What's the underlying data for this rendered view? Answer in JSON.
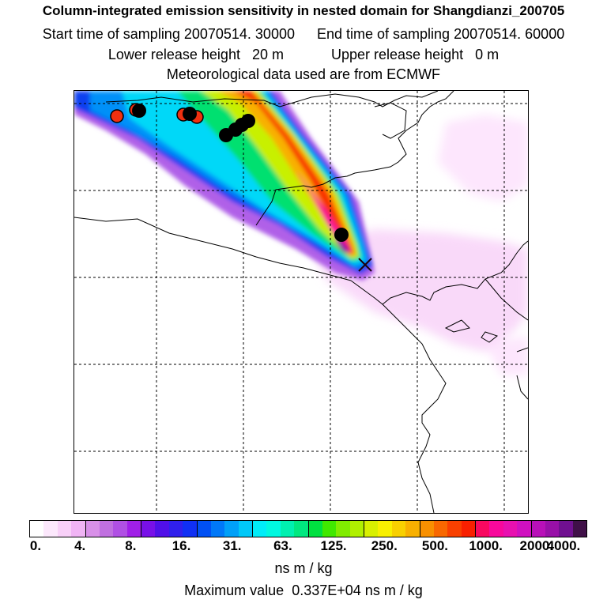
{
  "title": {
    "line1": "Column-integrated emission sensitivity in nested domain for Shangdianzi_200705",
    "start_label": "Start time of sampling 20070514. 30000",
    "end_label": "End time of sampling 20070514. 60000",
    "lower_label": "Lower release height",
    "lower_value": "20 m",
    "upper_label": "Upper release height",
    "upper_value": "0 m",
    "met_label": "Meteorological data used are from ECMWF"
  },
  "colorbar": {
    "colors": [
      "#ffffff",
      "#fce8fc",
      "#f8d0f8",
      "#f0b4f4",
      "#d890e8",
      "#c070e0",
      "#b050e4",
      "#a020e8",
      "#7810e8",
      "#5010e8",
      "#3020ec",
      "#1030f4",
      "#0050f4",
      "#0078f8",
      "#00a0f8",
      "#00c8f8",
      "#00ecf8",
      "#00f8e0",
      "#00f0b0",
      "#00e880",
      "#00e040",
      "#40e800",
      "#80ec00",
      "#b0f000",
      "#d8f000",
      "#f8f000",
      "#f8d000",
      "#f8b000",
      "#f89000",
      "#f86800",
      "#f84000",
      "#f82000",
      "#f80860",
      "#f8089c",
      "#e810b0",
      "#d010c0",
      "#b810b8",
      "#9810a8",
      "#701090",
      "#401048"
    ],
    "tick_labels": [
      "0.",
      "4.",
      "8.",
      "16.",
      "31.",
      "63.",
      "125.",
      "250.",
      "500.",
      "1000.",
      "2000.",
      "4000."
    ],
    "units": "ns m / kg"
  },
  "footer": {
    "max_label": "Maximum value",
    "max_value": "0.337E+04 ns m / kg"
  },
  "map": {
    "icons": [
      "receptor-cross-icon",
      "circle-marker-icon"
    ],
    "marker_colors": {
      "black": "#000000",
      "red": "#f03010"
    }
  }
}
